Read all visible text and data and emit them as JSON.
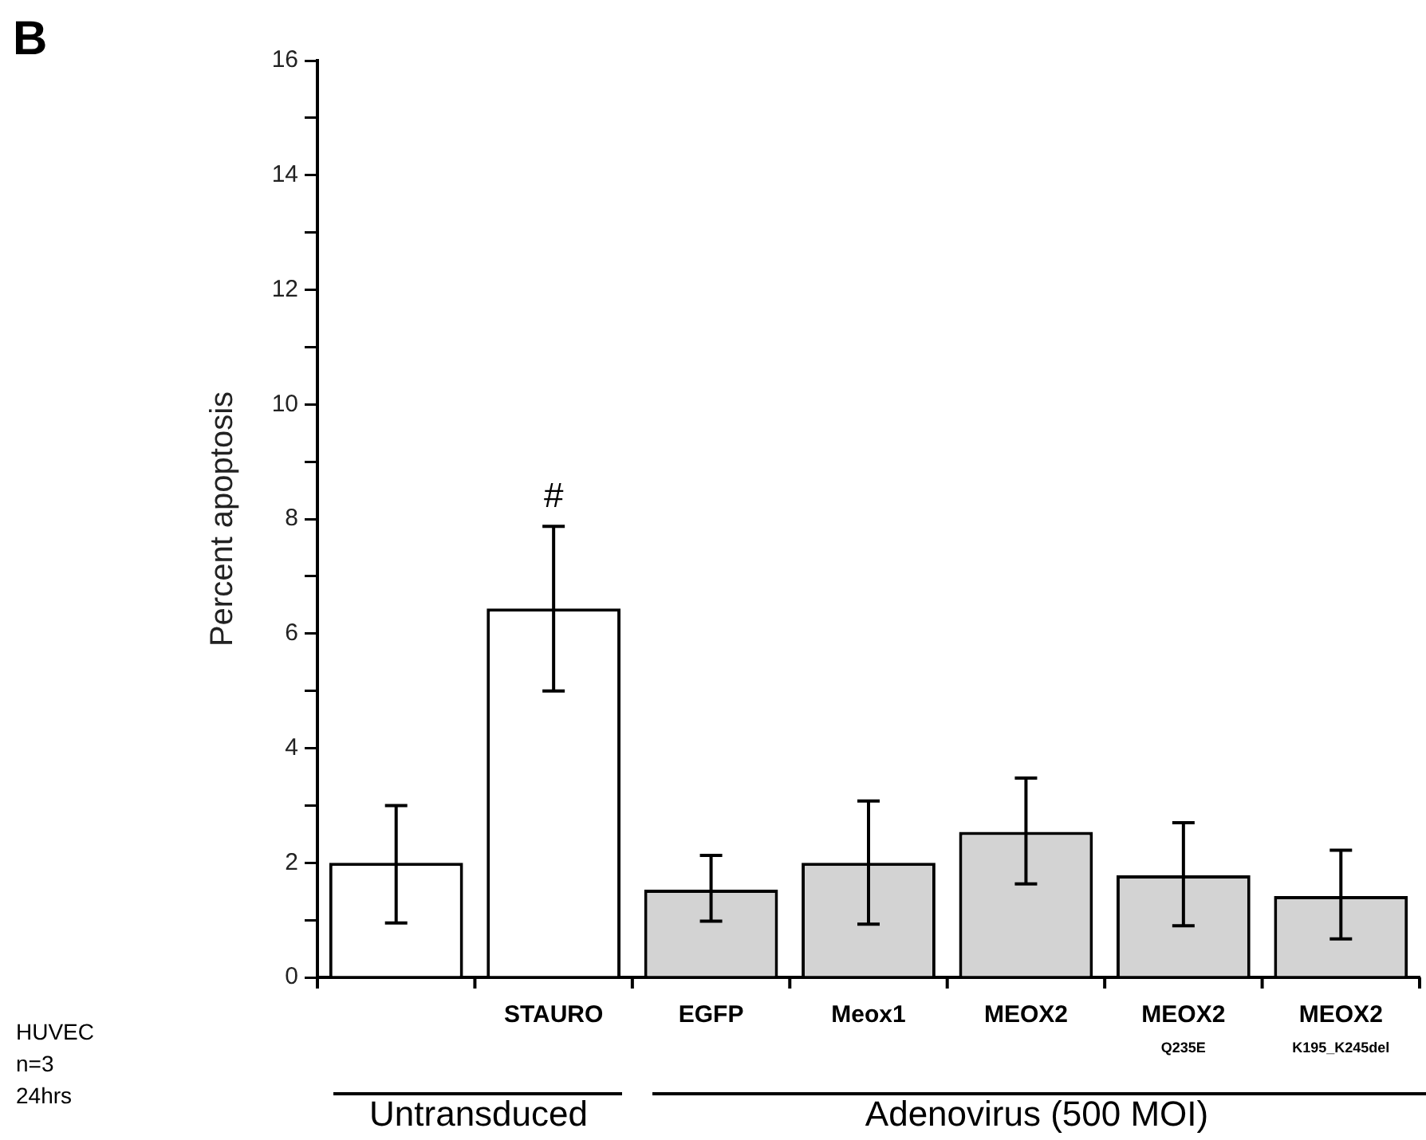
{
  "chart_data": {
    "type": "bar",
    "title": "B",
    "ylabel": "Percent apoptosis",
    "categories": [
      null,
      "STAURO",
      "EGFP",
      "Meox1",
      "MEOX2",
      "MEOX2\nQ235E",
      "MEOX2\nK195_K245del"
    ],
    "values": [
      2.0,
      6.44,
      1.53,
      2.0,
      2.54,
      1.78,
      1.42
    ],
    "colors": [
      "#ffffff",
      "#ffffff",
      "#d3d3d3",
      "#d3d3d3",
      "#d3d3d3",
      "#d3d3d3",
      "#d3d3d3"
    ],
    "errors": [
      [
        0.95,
        3.0
      ],
      [
        5.0,
        7.87
      ],
      [
        0.98,
        2.13
      ],
      [
        0.93,
        3.08
      ],
      [
        1.63,
        3.48
      ],
      [
        0.9,
        2.7
      ],
      [
        0.67,
        2.22
      ]
    ],
    "ylim": [
      0,
      16
    ],
    "yticks": [
      0,
      {
        "value": 1,
        "label": null
      },
      2,
      {
        "value": 3,
        "label": null
      },
      4,
      {
        "value": 5,
        "label": null
      },
      6,
      {
        "value": 7,
        "label": null
      },
      8,
      {
        "value": 9,
        "label": null
      },
      10,
      {
        "value": 11,
        "label": null
      },
      12,
      {
        "value": 13,
        "label": null
      },
      14,
      {
        "value": 15,
        "label": null
      },
      16
    ],
    "grid": false,
    "legend": false,
    "annotations": [
      {
        "text": "#",
        "x": "STAURO",
        "y": 7.87
      },
      "HUVEC",
      "n=3",
      "24hrs",
      "Untransduced",
      "Adenovirus (500 MOI)"
    ]
  }
}
